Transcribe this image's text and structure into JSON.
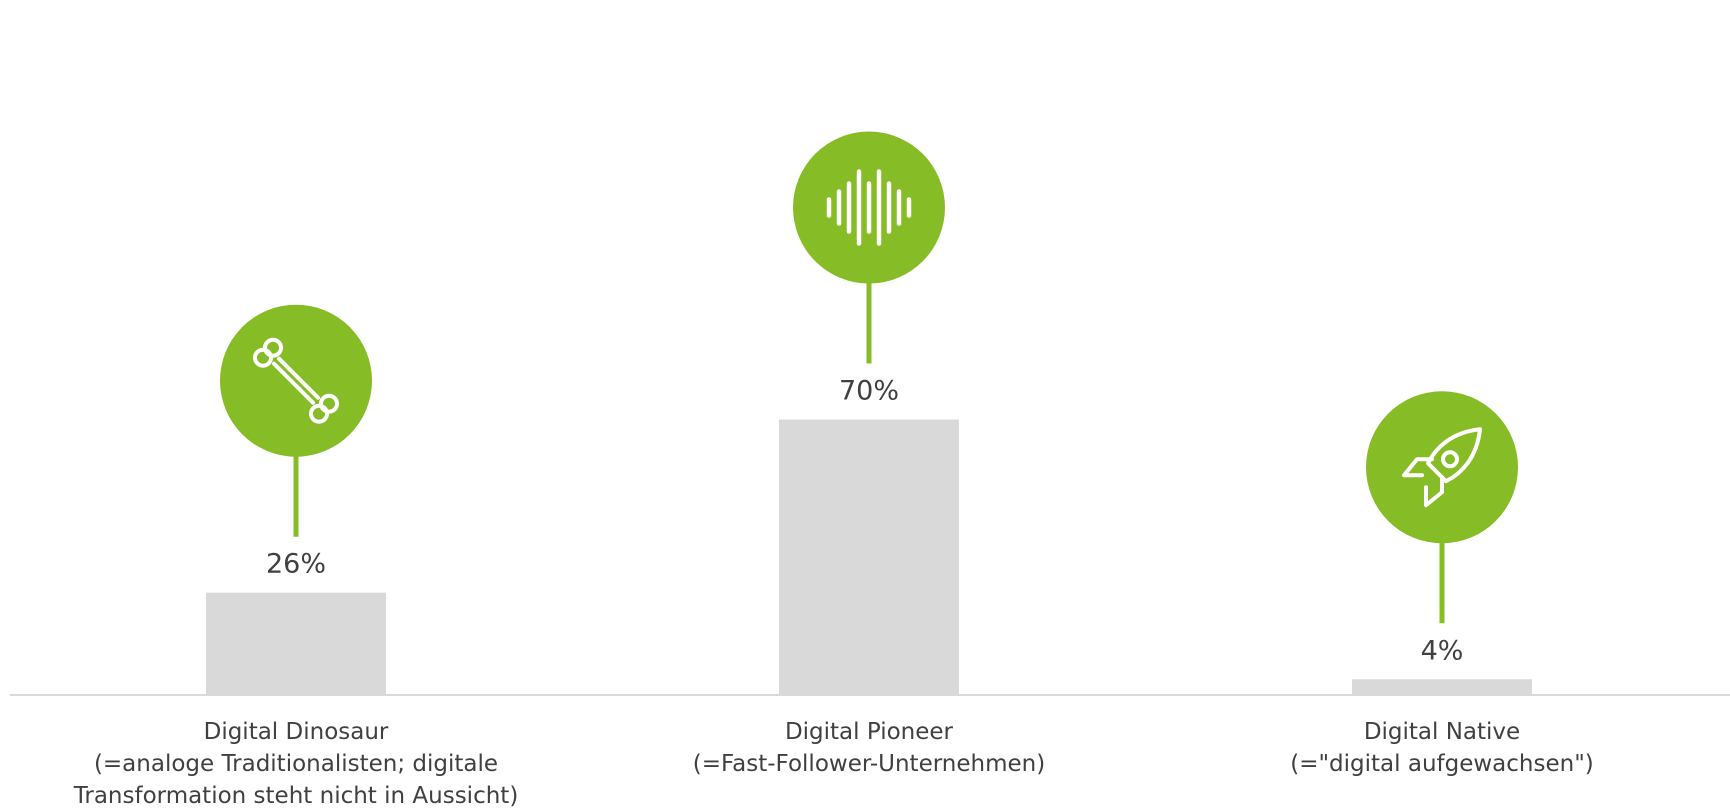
{
  "chart_data": {
    "type": "bar",
    "title": "",
    "xlabel": "",
    "ylabel": "",
    "ylim": [
      0,
      80
    ],
    "grid": false,
    "categories": [
      {
        "name": "Digital Dinosaur",
        "description_lines": [
          "(=analoge Traditionalisten; digitale",
          "Transformation steht nicht in Aussicht)"
        ],
        "icon": "bone-icon"
      },
      {
        "name": "Digital Pioneer",
        "description_lines": [
          "(=Fast-Follower-Unternehmen)"
        ],
        "icon": "sound-wave-icon"
      },
      {
        "name": "Digital Native",
        "description_lines": [
          "(=\"digital aufgewachsen\")"
        ],
        "icon": "rocket-icon"
      }
    ],
    "values": [
      26,
      70,
      4
    ],
    "value_labels": [
      "26%",
      "70%",
      "4%"
    ],
    "colors": {
      "bar": "#d9d9d9",
      "icon_badge": "#86bc25",
      "icon_glyph": "#ffffff",
      "axis": "#d9d9d9",
      "text": "#404040"
    }
  }
}
